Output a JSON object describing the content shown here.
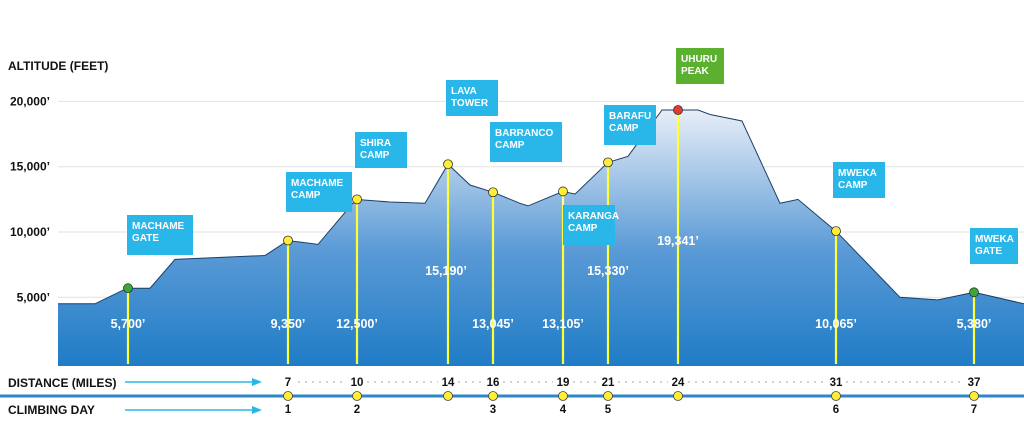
{
  "chart_data": {
    "type": "area",
    "title": "",
    "ylabel": "ALTITUDE (FEET)",
    "xlabel": "DISTANCE (MILES)",
    "ylim": [
      0,
      22000
    ],
    "yticks": [
      "5,000’",
      "10,000’",
      "15,000’",
      "20,000’"
    ],
    "ytick_values": [
      5000,
      10000,
      15000,
      20000
    ],
    "colors": {
      "fill_top": "#e8eef7",
      "fill_bottom": "#1f7cc6",
      "stem": "#ffff33",
      "flag": "#29b6e8",
      "summit_flag": "#5cb030",
      "summit_dot": "#e53935",
      "gate_dot": "#3aa835",
      "camp_dot": "#ffee33",
      "row_line": "#2f86c8",
      "arrow": "#29b6e8"
    },
    "profile_alt": [
      4500,
      4500,
      5700,
      5700,
      7900,
      8200,
      9350,
      9050,
      12500,
      12300,
      12200,
      15190,
      13600,
      13045,
      12200,
      12000,
      13105,
      12900,
      15330,
      15800,
      19341,
      19341,
      19000,
      18500,
      12200,
      12500,
      10065,
      5000,
      4800,
      5380,
      4500
    ],
    "points": [
      {
        "name": "MACHAME GATE",
        "label_lines": [
          "MACHAME",
          "GATE"
        ],
        "altitude": 5700,
        "altitude_label": "5,700’",
        "kind": "gate"
      },
      {
        "name": "MACHAME CAMP",
        "label_lines": [
          "MACHAME",
          "CAMP"
        ],
        "altitude": 9350,
        "altitude_label": "9,350’",
        "kind": "camp"
      },
      {
        "name": "SHIRA CAMP",
        "label_lines": [
          "SHIRA",
          "CAMP"
        ],
        "altitude": 12500,
        "altitude_label": "12,500’",
        "kind": "camp"
      },
      {
        "name": "LAVA TOWER",
        "label_lines": [
          "LAVA",
          "TOWER"
        ],
        "altitude": 15190,
        "altitude_label": "15,190’",
        "kind": "camp"
      },
      {
        "name": "BARRANCO CAMP",
        "label_lines": [
          "BARRANCO",
          "CAMP"
        ],
        "altitude": 13045,
        "altitude_label": "13,045’",
        "kind": "camp"
      },
      {
        "name": "KARANGA CAMP",
        "label_lines": [
          "KARANGA",
          "CAMP"
        ],
        "altitude": 13105,
        "altitude_label": "13,105’",
        "kind": "camp"
      },
      {
        "name": "BARAFU CAMP",
        "label_lines": [
          "BARAFU",
          "CAMP"
        ],
        "altitude": 15330,
        "altitude_label": "15,330’",
        "kind": "camp"
      },
      {
        "name": "UHURU PEAK",
        "label_lines": [
          "UHURU",
          "PEAK"
        ],
        "altitude": 19341,
        "altitude_label": "19,341’",
        "kind": "summit"
      },
      {
        "name": "MWEKA CAMP",
        "label_lines": [
          "MWEKA",
          "CAMP"
        ],
        "altitude": 10065,
        "altitude_label": "10,065’",
        "kind": "camp"
      },
      {
        "name": "MWEKA GATE",
        "label_lines": [
          "MWEKA",
          "GATE"
        ],
        "altitude": 5380,
        "altitude_label": "5,380’",
        "kind": "gate"
      }
    ],
    "distance_row": {
      "title": "DISTANCE (MILES)",
      "values": [
        "7",
        "10",
        "14",
        "16",
        "19",
        "21",
        "24",
        "31",
        "37"
      ]
    },
    "day_row": {
      "title": "CLIMBING  DAY",
      "labels": [
        "1",
        "2",
        "",
        "3",
        "4",
        "5",
        "",
        "6",
        "7"
      ]
    }
  }
}
